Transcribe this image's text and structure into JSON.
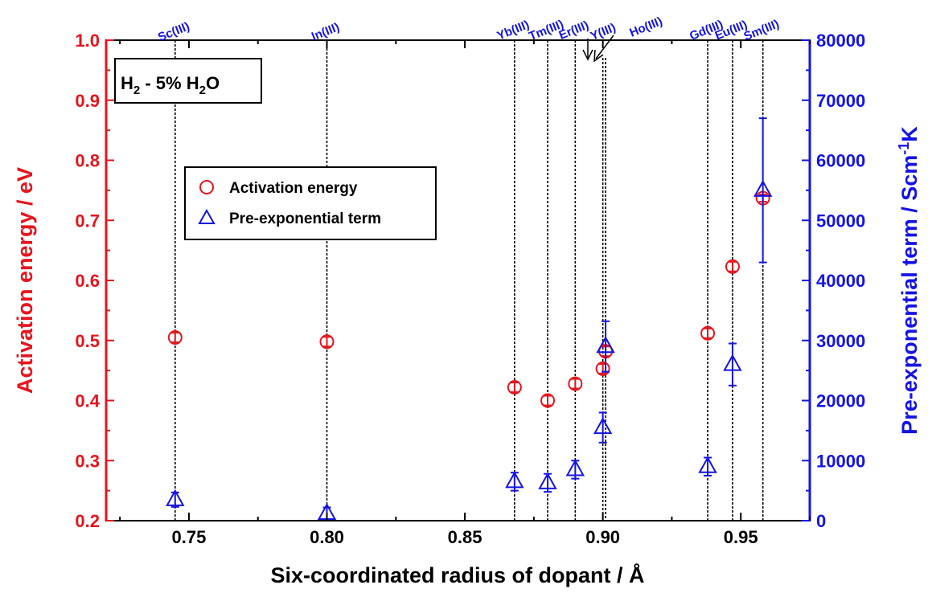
{
  "chart_data": {
    "type": "scatter",
    "colors": {
      "left_axis": "#e8141c",
      "right_axis": "#1414e6",
      "frame": "#000000"
    },
    "xlabel": "Six-coordinated radius of dopant / Å",
    "ylabel_left": "Activation energy / eV",
    "ylabel_right": {
      "text": "Pre-exponential term / Scm",
      "sup": "-1",
      "tail": "K"
    },
    "xlim": [
      0.72,
      0.975
    ],
    "ylim_left": [
      0.2,
      1.0
    ],
    "ylim_right": [
      0,
      80000
    ],
    "x_ticks": [
      "0.75",
      "0.80",
      "0.85",
      "0.90",
      "0.95"
    ],
    "y_left_ticks": [
      "0.2",
      "0.3",
      "0.4",
      "0.5",
      "0.6",
      "0.7",
      "0.8",
      "0.9",
      "1.0"
    ],
    "y_right_ticks": [
      "0",
      "10000",
      "20000",
      "30000",
      "40000",
      "50000",
      "60000",
      "70000",
      "80000"
    ],
    "annotation": {
      "main": "H",
      "sub1": "2",
      "mid": " - 5% H",
      "sub2": "2",
      "tail": "O"
    },
    "legend": {
      "placement": "upper-left",
      "entries": [
        "Activation energy",
        "Pre-exponential term"
      ]
    },
    "dopants": [
      {
        "label": "Sc(III)",
        "x": 0.745
      },
      {
        "label": "In(III)",
        "x": 0.8
      },
      {
        "label": "Yb(III)",
        "x": 0.868
      },
      {
        "label": "Tm(III)",
        "x": 0.88
      },
      {
        "label": "Er(III)",
        "x": 0.89
      },
      {
        "label": "Y(III)",
        "x": 0.9
      },
      {
        "label": "Ho(III)",
        "x": 0.901
      },
      {
        "label": "Gd(III)",
        "x": 0.938
      },
      {
        "label": "Eu(III)",
        "x": 0.947
      },
      {
        "label": "Sm(III)",
        "x": 0.958
      }
    ],
    "series": [
      {
        "name": "Activation energy",
        "axis": "left",
        "marker": "circle",
        "points": [
          {
            "x": 0.745,
            "y": 0.505,
            "err": 0.008
          },
          {
            "x": 0.8,
            "y": 0.498,
            "err": 0.008
          },
          {
            "x": 0.868,
            "y": 0.422,
            "err": 0.008
          },
          {
            "x": 0.88,
            "y": 0.4,
            "err": 0.008
          },
          {
            "x": 0.89,
            "y": 0.428,
            "err": 0.008
          },
          {
            "x": 0.9,
            "y": 0.453,
            "err": 0.008
          },
          {
            "x": 0.901,
            "y": 0.482,
            "err": 0.008
          },
          {
            "x": 0.938,
            "y": 0.512,
            "err": 0.008
          },
          {
            "x": 0.947,
            "y": 0.623,
            "err": 0.008
          },
          {
            "x": 0.958,
            "y": 0.737,
            "err": 0.006
          }
        ]
      },
      {
        "name": "Pre-exponential term",
        "axis": "right",
        "marker": "triangle",
        "points": [
          {
            "x": 0.745,
            "y": 3500,
            "err": 1200
          },
          {
            "x": 0.8,
            "y": 1200,
            "err": 1000
          },
          {
            "x": 0.868,
            "y": 6500,
            "err": 1500
          },
          {
            "x": 0.88,
            "y": 6300,
            "err": 1500
          },
          {
            "x": 0.89,
            "y": 8500,
            "err": 1500
          },
          {
            "x": 0.9,
            "y": 15500,
            "err": 2500
          },
          {
            "x": 0.901,
            "y": 29000,
            "err": 4200
          },
          {
            "x": 0.938,
            "y": 9000,
            "err": 1500
          },
          {
            "x": 0.947,
            "y": 26000,
            "err": 3500
          },
          {
            "x": 0.958,
            "y": 55000,
            "err": 12000
          }
        ]
      }
    ]
  }
}
